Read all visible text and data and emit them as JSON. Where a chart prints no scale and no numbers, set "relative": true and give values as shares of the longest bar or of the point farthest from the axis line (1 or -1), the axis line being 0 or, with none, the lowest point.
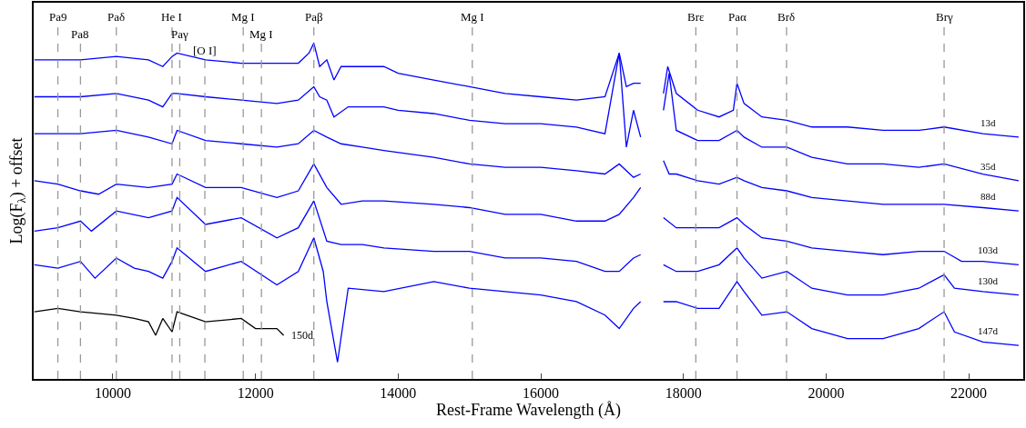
{
  "chart_data": {
    "type": "line",
    "relative": true,
    "xlabel": "Rest-Frame Wavelength (Å)",
    "ylabel": "Log(F$_{λ}$) + offset",
    "xlim": [
      8890,
      22765
    ],
    "xticks": [
      10000,
      12000,
      14000,
      16000,
      18000,
      20000,
      22000
    ],
    "legend": false,
    "line_style": "solid",
    "series": [
      {
        "name": "13d",
        "color": "#0000ff",
        "x": [
          8900,
          9229,
          9546,
          10049,
          10500,
          10700,
          10830,
          10900,
          11300,
          11800,
          12300,
          12600,
          12750,
          12818,
          12900,
          13000,
          13100,
          13200,
          13500,
          13800,
          14000,
          14500,
          15000,
          15500,
          16000,
          16500,
          16900,
          17100,
          17200,
          17300,
          17400,
          17550,
          17720,
          17780,
          17900,
          18200,
          18500,
          18700,
          18751,
          18850,
          19100,
          19450,
          19800,
          20300,
          20800,
          21300,
          21655,
          22200,
          22700
        ],
        "values": [
          0.95,
          0.95,
          0.95,
          0.96,
          0.95,
          0.93,
          0.96,
          0.97,
          0.95,
          0.94,
          0.94,
          0.94,
          0.97,
          1.0,
          0.93,
          0.95,
          0.89,
          0.93,
          0.93,
          0.93,
          0.91,
          0.89,
          0.87,
          0.85,
          0.84,
          0.83,
          0.84,
          0.97,
          0.87,
          0.88,
          0.88,
          null,
          0.85,
          0.93,
          0.85,
          0.8,
          0.78,
          0.8,
          0.88,
          0.82,
          0.78,
          0.77,
          0.75,
          0.75,
          0.74,
          0.74,
          0.75,
          0.73,
          0.72
        ]
      },
      {
        "name": "35d",
        "color": "#0000ff",
        "x": [
          8900,
          9546,
          10049,
          10500,
          10700,
          10830,
          10900,
          11300,
          11800,
          12300,
          12600,
          12818,
          12900,
          13000,
          13100,
          13300,
          13500,
          13800,
          14000,
          14500,
          15000,
          15500,
          16000,
          16500,
          16900,
          17100,
          17200,
          17300,
          17400,
          17550,
          17720,
          17800,
          17900,
          18200,
          18500,
          18751,
          18850,
          19100,
          19450,
          19800,
          20300,
          20800,
          21300,
          21655,
          22200,
          22700
        ],
        "values": [
          0.84,
          0.84,
          0.85,
          0.83,
          0.81,
          0.85,
          0.85,
          0.84,
          0.83,
          0.82,
          0.83,
          0.87,
          0.84,
          0.83,
          0.78,
          0.81,
          0.81,
          0.81,
          0.8,
          0.79,
          0.77,
          0.76,
          0.76,
          0.75,
          0.73,
          0.97,
          0.69,
          0.8,
          0.72,
          null,
          0.8,
          0.91,
          0.74,
          0.71,
          0.71,
          0.74,
          0.72,
          0.69,
          0.69,
          0.66,
          0.64,
          0.64,
          0.63,
          0.64,
          0.61,
          0.59
        ]
      },
      {
        "name": "88d",
        "color": "#0000ff",
        "x": [
          8900,
          9229,
          9546,
          10049,
          10500,
          10830,
          10900,
          11300,
          11800,
          12300,
          12600,
          12818,
          13000,
          13200,
          13500,
          13800,
          14500,
          15000,
          15500,
          16000,
          16500,
          16900,
          17100,
          17300,
          17400,
          17550,
          17720,
          17800,
          17900,
          18200,
          18500,
          18751,
          18850,
          19100,
          19450,
          19800,
          20300,
          20800,
          21300,
          21655,
          22200,
          22700
        ],
        "values": [
          0.73,
          0.73,
          0.73,
          0.74,
          0.72,
          0.7,
          0.74,
          0.71,
          0.7,
          0.69,
          0.7,
          0.74,
          0.72,
          0.7,
          0.69,
          0.68,
          0.66,
          0.64,
          0.63,
          0.63,
          0.62,
          0.61,
          0.64,
          0.6,
          0.61,
          null,
          0.65,
          0.61,
          0.61,
          0.59,
          0.58,
          0.6,
          0.59,
          0.57,
          0.56,
          0.54,
          0.53,
          0.52,
          0.52,
          0.52,
          0.51,
          0.5
        ]
      },
      {
        "name": "103d",
        "color": "#0000ff",
        "x": [
          8900,
          9229,
          9546,
          9800,
          10049,
          10500,
          10830,
          10900,
          11300,
          11800,
          12300,
          12600,
          12818,
          13000,
          13200,
          13500,
          13800,
          14500,
          15000,
          15500,
          16000,
          16500,
          16900,
          17100,
          17300,
          17400,
          17550,
          17720,
          17900,
          18200,
          18500,
          18751,
          18850,
          19100,
          19450,
          19800,
          20300,
          20800,
          21300,
          21655,
          21900,
          22200,
          22700
        ],
        "values": [
          0.59,
          0.58,
          0.56,
          0.55,
          0.58,
          0.57,
          0.58,
          0.61,
          0.57,
          0.57,
          0.54,
          0.56,
          0.64,
          0.57,
          0.52,
          0.53,
          0.53,
          0.52,
          0.51,
          0.49,
          0.49,
          0.47,
          0.47,
          0.49,
          0.54,
          0.57,
          null,
          0.48,
          0.45,
          0.45,
          0.45,
          0.48,
          0.46,
          0.42,
          0.41,
          0.39,
          0.38,
          0.37,
          0.38,
          0.38,
          0.35,
          0.35,
          0.34
        ]
      },
      {
        "name": "130d",
        "color": "#0000ff",
        "x": [
          8900,
          9229,
          9546,
          9700,
          10049,
          10500,
          10830,
          10900,
          11300,
          11800,
          12300,
          12600,
          12818,
          13000,
          13200,
          13500,
          13800,
          14500,
          15000,
          15500,
          16000,
          16500,
          16900,
          17100,
          17300,
          17400,
          17550,
          17720,
          17900,
          18200,
          18500,
          18751,
          18850,
          19100,
          19450,
          19800,
          20300,
          20800,
          21300,
          21655,
          21800,
          22200,
          22700
        ],
        "values": [
          0.44,
          0.45,
          0.47,
          0.44,
          0.5,
          0.48,
          0.5,
          0.54,
          0.46,
          0.48,
          0.42,
          0.45,
          0.53,
          0.41,
          0.4,
          0.4,
          0.39,
          0.38,
          0.38,
          0.36,
          0.36,
          0.35,
          0.32,
          0.32,
          0.36,
          0.37,
          null,
          0.34,
          0.32,
          0.32,
          0.34,
          0.39,
          0.36,
          0.3,
          0.32,
          0.27,
          0.25,
          0.25,
          0.27,
          0.31,
          0.27,
          0.26,
          0.25
        ]
      },
      {
        "name": "147d",
        "color": "#0000ff",
        "x": [
          8900,
          9229,
          9546,
          9750,
          10049,
          10300,
          10500,
          10700,
          10830,
          10900,
          11300,
          11800,
          12300,
          12600,
          12818,
          12950,
          13000,
          13150,
          13300,
          13800,
          14500,
          15000,
          15500,
          16000,
          16500,
          16900,
          17100,
          17300,
          17400,
          17550,
          17720,
          17900,
          18200,
          18500,
          18751,
          18850,
          19100,
          19450,
          19800,
          20300,
          20800,
          21300,
          21655,
          21800,
          22200,
          22700
        ],
        "values": [
          0.34,
          0.33,
          0.35,
          0.3,
          0.36,
          0.33,
          0.32,
          0.3,
          0.35,
          0.39,
          0.32,
          0.35,
          0.28,
          0.32,
          0.42,
          0.32,
          0.23,
          0.05,
          0.27,
          0.26,
          0.29,
          0.27,
          0.26,
          0.25,
          0.23,
          0.19,
          0.15,
          0.21,
          0.23,
          null,
          0.23,
          0.23,
          0.21,
          0.21,
          0.29,
          0.26,
          0.19,
          0.2,
          0.15,
          0.12,
          0.12,
          0.15,
          0.2,
          0.14,
          0.11,
          0.1
        ]
      },
      {
        "name": "150d",
        "color": "#000000",
        "x": [
          8900,
          9229,
          9546,
          10049,
          10300,
          10500,
          10600,
          10700,
          10830,
          10900,
          11300,
          11800,
          12000,
          12300,
          12395
        ],
        "values": [
          0.2,
          0.21,
          0.2,
          0.19,
          0.18,
          0.17,
          0.13,
          0.18,
          0.14,
          0.2,
          0.17,
          0.18,
          0.15,
          0.15,
          0.13
        ]
      }
    ],
    "ref_lines": [
      {
        "axis": "x",
        "value": 9229,
        "label": "Pa9",
        "color": "#999999",
        "line_style": "dashed"
      },
      {
        "axis": "x",
        "value": 9546,
        "label": "Pa8",
        "color": "#999999",
        "line_style": "dashed"
      },
      {
        "axis": "x",
        "value": 10049,
        "label": "Paδ",
        "color": "#999999",
        "line_style": "dashed"
      },
      {
        "axis": "x",
        "value": 10830,
        "label": "He I",
        "color": "#999999",
        "line_style": "dashed"
      },
      {
        "axis": "x",
        "value": 10938,
        "label": "Paγ",
        "color": "#999999",
        "line_style": "dashed"
      },
      {
        "axis": "x",
        "value": 11290,
        "label": "[O I]",
        "color": "#999999",
        "line_style": "dashed"
      },
      {
        "axis": "x",
        "value": 11828,
        "label": "Mg I",
        "color": "#999999",
        "line_style": "dashed"
      },
      {
        "axis": "x",
        "value": 12083,
        "label": "Mg I",
        "color": "#999999",
        "line_style": "dashed"
      },
      {
        "axis": "x",
        "value": 12818,
        "label": "Paβ",
        "color": "#999999",
        "line_style": "dashed"
      },
      {
        "axis": "x",
        "value": 15040,
        "label": "Mg I",
        "color": "#999999",
        "line_style": "dashed"
      },
      {
        "axis": "x",
        "value": 18174,
        "label": "Brε",
        "color": "#999999",
        "line_style": "dashed"
      },
      {
        "axis": "x",
        "value": 18751,
        "label": "Paα",
        "color": "#999999",
        "line_style": "dashed"
      },
      {
        "axis": "x",
        "value": 19446,
        "label": "Brδ",
        "color": "#999999",
        "line_style": "dashed"
      },
      {
        "axis": "x",
        "value": 21655,
        "label": "Brγ",
        "color": "#999999",
        "line_style": "dashed"
      }
    ]
  }
}
